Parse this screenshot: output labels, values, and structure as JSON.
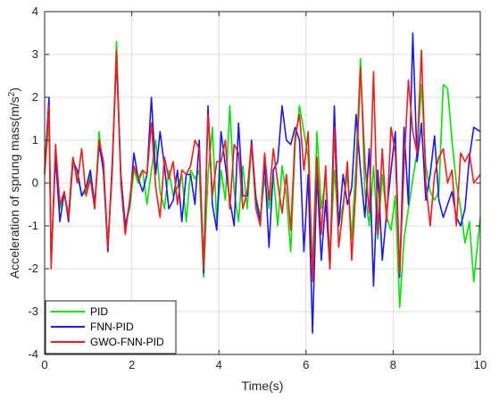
{
  "chart_data": {
    "type": "line",
    "xlabel": "Time(s)",
    "ylabel": "Acceleration of sprung mass(m/s",
    "ylabel_sup": "2",
    "ylabel_close": ")",
    "xlim": [
      0,
      10
    ],
    "ylim": [
      -4,
      4
    ],
    "xticks": [
      0,
      2,
      4,
      6,
      8,
      10
    ],
    "yticks": [
      -4,
      -3,
      -2,
      -1,
      0,
      1,
      2,
      3,
      4
    ],
    "grid": true,
    "legend_position": "bottom-left",
    "series": [
      {
        "name": "PID",
        "color": "#00e600",
        "x": [
          0,
          0.1,
          0.15,
          0.25,
          0.35,
          0.45,
          0.55,
          0.65,
          0.75,
          0.85,
          0.95,
          1.05,
          1.15,
          1.25,
          1.35,
          1.45,
          1.55,
          1.65,
          1.75,
          1.85,
          1.95,
          2.05,
          2.15,
          2.25,
          2.35,
          2.45,
          2.55,
          2.65,
          2.75,
          2.85,
          2.95,
          3.05,
          3.15,
          3.25,
          3.35,
          3.45,
          3.55,
          3.65,
          3.75,
          3.85,
          3.95,
          4.05,
          4.15,
          4.25,
          4.35,
          4.45,
          4.55,
          4.65,
          4.75,
          4.85,
          4.95,
          5.05,
          5.15,
          5.25,
          5.35,
          5.45,
          5.55,
          5.65,
          5.75,
          5.85,
          5.95,
          6.05,
          6.15,
          6.25,
          6.35,
          6.45,
          6.55,
          6.65,
          6.75,
          6.85,
          6.95,
          7.05,
          7.15,
          7.25,
          7.35,
          7.45,
          7.55,
          7.65,
          7.75,
          7.85,
          7.95,
          8.05,
          8.15,
          8.25,
          8.35,
          8.45,
          8.55,
          8.65,
          8.75,
          8.85,
          8.95,
          9.05,
          9.15,
          9.25,
          9.35,
          9.45,
          9.55,
          9.65,
          9.75,
          9.85,
          10
        ],
        "y": [
          0.2,
          1.5,
          -1.9,
          0.8,
          -0.6,
          -0.3,
          -0.7,
          0.6,
          0.2,
          -0.3,
          -0.2,
          0.2,
          -0.6,
          1.2,
          0.2,
          -1.4,
          0.3,
          3.3,
          0.1,
          -1.0,
          -0.6,
          0.3,
          0.0,
          0.3,
          -0.5,
          0.3,
          1.0,
          -0.2,
          -0.6,
          0.3,
          -0.3,
          -0.1,
          0.2,
          -0.9,
          0.3,
          0.1,
          0.3,
          -2.2,
          0.2,
          1.3,
          -0.9,
          0.3,
          -0.4,
          1.8,
          -0.2,
          -0.9,
          0.4,
          -0.6,
          0.9,
          -0.3,
          -0.8,
          0.1,
          -0.6,
          0.2,
          -1.0,
          0.4,
          -0.3,
          -1.6,
          0.9,
          1.8,
          1.2,
          0.6,
          -2.0,
          1.2,
          -0.6,
          0.1,
          -1.8,
          0.3,
          -1.0,
          -0.5,
          0.2,
          -1.3,
          0.5,
          2.9,
          -0.2,
          -1.0,
          0.4,
          -1.3,
          0.2,
          -0.8,
          -1.1,
          -0.3,
          -2.9,
          -1.3,
          -0.6,
          0.1,
          0.7,
          2.3,
          0.4,
          -0.2,
          -0.4,
          -0.2,
          2.3,
          2.2,
          1.0,
          0.0,
          -0.6,
          -1.4,
          -0.9,
          -2.3,
          -0.8
        ]
      },
      {
        "name": "FNN-PID",
        "color": "#1a1aff",
        "x": [
          0,
          0.1,
          0.15,
          0.25,
          0.35,
          0.45,
          0.55,
          0.65,
          0.75,
          0.85,
          0.95,
          1.05,
          1.15,
          1.25,
          1.35,
          1.45,
          1.55,
          1.65,
          1.75,
          1.85,
          1.95,
          2.05,
          2.15,
          2.25,
          2.35,
          2.45,
          2.55,
          2.65,
          2.75,
          2.85,
          2.95,
          3.05,
          3.15,
          3.25,
          3.35,
          3.45,
          3.55,
          3.65,
          3.75,
          3.85,
          3.95,
          4.05,
          4.15,
          4.25,
          4.35,
          4.45,
          4.55,
          4.65,
          4.75,
          4.85,
          4.95,
          5.05,
          5.15,
          5.25,
          5.35,
          5.45,
          5.55,
          5.65,
          5.75,
          5.85,
          5.95,
          6.05,
          6.15,
          6.25,
          6.35,
          6.45,
          6.55,
          6.65,
          6.75,
          6.85,
          6.95,
          7.05,
          7.15,
          7.25,
          7.35,
          7.45,
          7.55,
          7.65,
          7.75,
          7.85,
          7.95,
          8.05,
          8.15,
          8.25,
          8.35,
          8.45,
          8.55,
          8.65,
          8.75,
          8.85,
          8.95,
          9.05,
          9.15,
          9.25,
          9.35,
          9.45,
          9.55,
          9.65,
          9.75,
          9.85,
          10
        ],
        "y": [
          0.3,
          2.0,
          -1.8,
          0.6,
          -0.9,
          -0.2,
          -0.9,
          0.5,
          0.3,
          -0.3,
          -0.1,
          0.3,
          -0.5,
          0.9,
          0.3,
          -1.6,
          0.4,
          2.9,
          0.2,
          -1.0,
          -0.5,
          0.7,
          0.1,
          -0.2,
          0.2,
          2.0,
          0.2,
          1.2,
          0.4,
          -0.6,
          -0.4,
          0.3,
          -0.9,
          0.2,
          0.2,
          -0.5,
          1.0,
          -2.1,
          1.8,
          -0.5,
          -1.1,
          1.2,
          0.4,
          -0.4,
          -1.0,
          1.4,
          -0.3,
          -0.3,
          1.0,
          -0.4,
          -0.9,
          0.5,
          -1.5,
          0.3,
          0.5,
          1.8,
          1.0,
          0.9,
          1.3,
          1.0,
          -1.6,
          0.2,
          -3.5,
          0.2,
          -1.8,
          -0.4,
          -2.0,
          1.8,
          -1.0,
          0.2,
          -0.5,
          -0.1,
          1.6,
          0.3,
          -0.8,
          0.8,
          -2.4,
          0.3,
          -1.8,
          -0.7,
          0.3,
          1.2,
          -2.2,
          1.3,
          -0.5,
          3.5,
          0.5,
          1.4,
          -0.4,
          0.2,
          1.1,
          -0.4,
          -0.8,
          -0.5,
          -0.2,
          -0.8,
          -1.0,
          -0.6,
          0.6,
          1.3,
          1.2
        ]
      },
      {
        "name": "GWO-FNN-PID",
        "color": "#ff1a1a",
        "x": [
          0,
          0.1,
          0.15,
          0.25,
          0.35,
          0.45,
          0.55,
          0.65,
          0.75,
          0.85,
          0.95,
          1.05,
          1.15,
          1.25,
          1.35,
          1.45,
          1.55,
          1.65,
          1.75,
          1.85,
          1.95,
          2.05,
          2.15,
          2.25,
          2.35,
          2.45,
          2.55,
          2.65,
          2.75,
          2.85,
          2.95,
          3.05,
          3.15,
          3.25,
          3.35,
          3.45,
          3.55,
          3.65,
          3.75,
          3.85,
          3.95,
          4.05,
          4.15,
          4.25,
          4.35,
          4.45,
          4.55,
          4.65,
          4.75,
          4.85,
          4.95,
          5.05,
          5.15,
          5.25,
          5.35,
          5.45,
          5.55,
          5.65,
          5.75,
          5.85,
          5.95,
          6.05,
          6.15,
          6.25,
          6.35,
          6.45,
          6.55,
          6.65,
          6.75,
          6.85,
          6.95,
          7.05,
          7.15,
          7.25,
          7.35,
          7.45,
          7.55,
          7.65,
          7.75,
          7.85,
          7.95,
          8.05,
          8.15,
          8.25,
          8.35,
          8.45,
          8.55,
          8.65,
          8.75,
          8.85,
          8.95,
          9.05,
          9.15,
          9.25,
          9.35,
          9.45,
          9.55,
          9.65,
          9.75,
          9.85,
          10
        ],
        "y": [
          0.2,
          1.8,
          -2.0,
          0.9,
          -0.5,
          -0.2,
          -0.8,
          0.6,
          0.0,
          0.8,
          -0.3,
          0.1,
          -0.6,
          1.0,
          0.5,
          -1.5,
          0.2,
          3.1,
          0.0,
          -1.2,
          -0.4,
          0.4,
          0.1,
          0.3,
          0.2,
          1.4,
          -0.1,
          -0.8,
          0.6,
          0.1,
          0.5,
          -0.5,
          0.3,
          0.2,
          0.4,
          1.0,
          0.8,
          -2.0,
          1.6,
          -0.3,
          0.5,
          0.5,
          1.0,
          -0.6,
          0.9,
          0.7,
          -0.6,
          -0.2,
          0.9,
          -0.6,
          -1.0,
          0.7,
          -0.4,
          0.8,
          0.0,
          -0.7,
          0.2,
          -1.1,
          1.1,
          1.6,
          0.3,
          1.2,
          -2.3,
          0.6,
          -1.2,
          0.4,
          -2.0,
          1.3,
          -1.5,
          -0.6,
          0.5,
          -1.8,
          0.0,
          2.7,
          0.5,
          -0.7,
          2.6,
          -1.2,
          0.8,
          -0.9,
          1.3,
          0.7,
          -2.1,
          0.4,
          2.4,
          1.2,
          0.7,
          3.1,
          0.0,
          -1.0,
          0.2,
          0.6,
          0.8,
          0.0,
          0.3,
          -1.0,
          0.7,
          0.5,
          0.7,
          0.0,
          0.2
        ]
      }
    ]
  }
}
